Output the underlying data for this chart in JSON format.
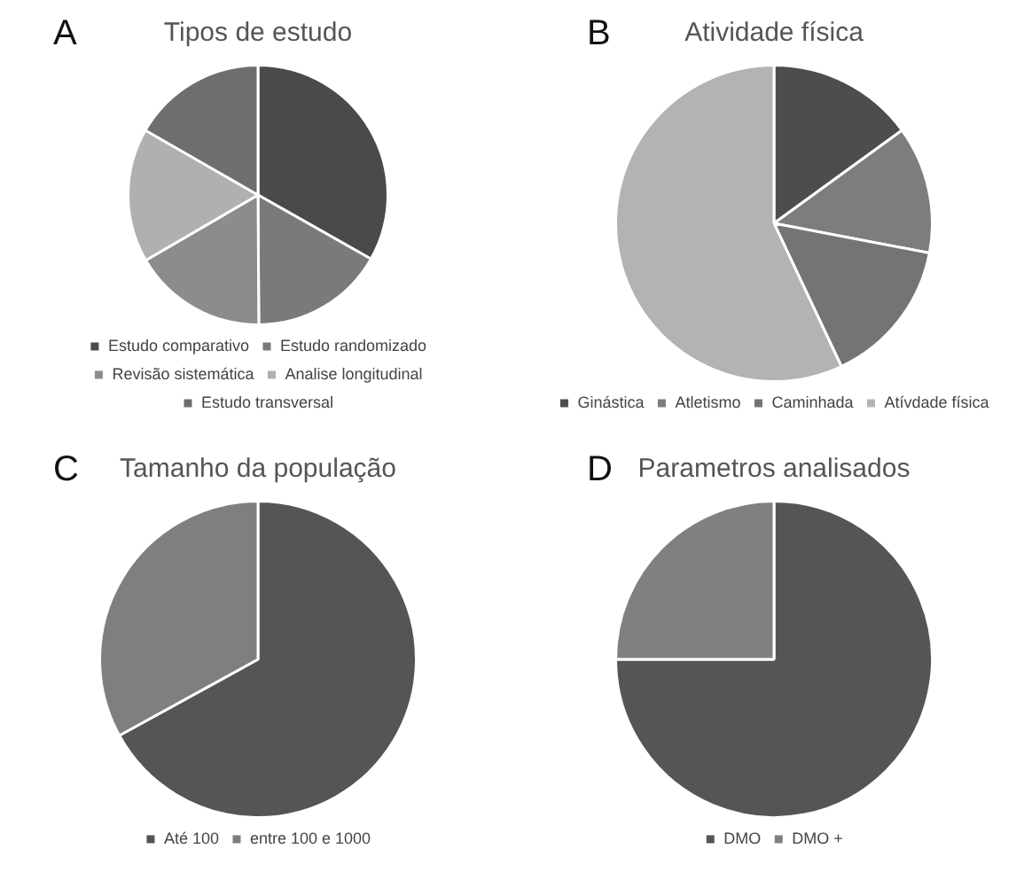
{
  "chart_data": [
    {
      "type": "pie",
      "title": "Tipos de estudo",
      "annotations": [
        "A"
      ],
      "categories": [
        "Estudo comparativo",
        "Estudo randomizado",
        "Revisão sistemática",
        "Analise longitudinal",
        "Estudo transversal"
      ],
      "values": [
        33.2,
        16.7,
        16.7,
        16.7,
        16.7
      ],
      "colors": [
        "#4a4a4a",
        "#7a7a7a",
        "#8c8c8c",
        "#b0b0b0",
        "#6e6e6e"
      ],
      "legend": "bottom"
    },
    {
      "type": "pie",
      "title": "Atividade física",
      "annotations": [
        "B"
      ],
      "categories": [
        "Ginástica",
        "Atletismo",
        "Caminhada",
        "Atívdade física"
      ],
      "values": [
        15,
        13,
        15,
        57
      ],
      "colors": [
        "#4d4d4d",
        "#7d7d7d",
        "#747474",
        "#b3b3b3"
      ],
      "legend": "bottom"
    },
    {
      "type": "pie",
      "title": "Tamanho da população",
      "annotations": [
        "C"
      ],
      "categories": [
        "Até 100",
        "entre 100 e 1000"
      ],
      "values": [
        67,
        33
      ],
      "colors": [
        "#555555",
        "#7f7f7f"
      ],
      "legend": "bottom"
    },
    {
      "type": "pie",
      "title": "Parametros analisados",
      "annotations": [
        "D"
      ],
      "categories": [
        "DMO",
        "DMO +"
      ],
      "values": [
        75,
        25
      ],
      "colors": [
        "#555555",
        "#808080"
      ],
      "legend": "bottom"
    }
  ]
}
